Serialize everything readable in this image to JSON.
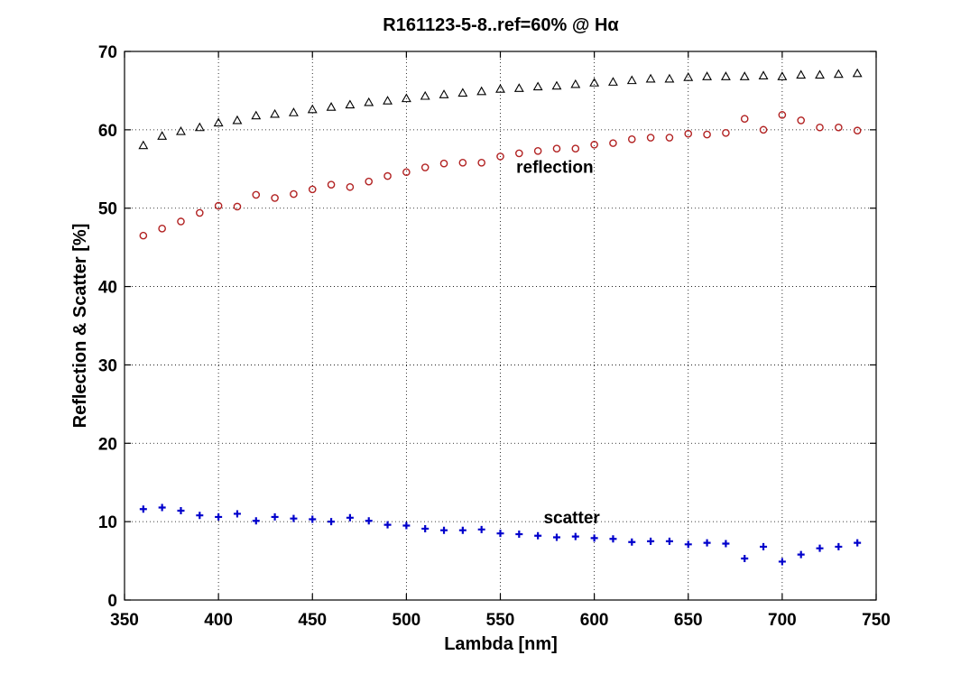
{
  "chart_data": {
    "type": "scatter",
    "title": "R161123-5-8..ref=60% @ Hα",
    "xlabel": "Lambda [nm]",
    "ylabel": "Reflection & Scatter [%]",
    "xlim": [
      350,
      750
    ],
    "ylim": [
      0,
      70
    ],
    "xticks": [
      350,
      400,
      450,
      500,
      550,
      600,
      650,
      700,
      750
    ],
    "yticks": [
      0,
      10,
      20,
      30,
      40,
      50,
      60,
      70
    ],
    "grid": true,
    "x": [
      360,
      370,
      380,
      390,
      400,
      410,
      420,
      430,
      440,
      450,
      460,
      470,
      480,
      490,
      500,
      510,
      520,
      530,
      540,
      550,
      560,
      570,
      580,
      590,
      600,
      610,
      620,
      630,
      640,
      650,
      660,
      670,
      680,
      690,
      700,
      710,
      720,
      730,
      740
    ],
    "series": [
      {
        "marker": "triangle",
        "color": "#000000",
        "values": [
          58.0,
          59.2,
          59.8,
          60.3,
          60.9,
          61.2,
          61.8,
          62.0,
          62.2,
          62.6,
          62.9,
          63.2,
          63.5,
          63.7,
          64.0,
          64.3,
          64.5,
          64.7,
          64.9,
          65.2,
          65.3,
          65.5,
          65.6,
          65.8,
          66.0,
          66.1,
          66.3,
          66.5,
          66.5,
          66.7,
          66.8,
          66.8,
          66.8,
          66.9,
          66.8,
          67.0,
          67.0,
          67.1,
          67.2
        ]
      },
      {
        "marker": "circle",
        "color": "#b22222",
        "values": [
          46.5,
          47.4,
          48.3,
          49.4,
          50.3,
          50.2,
          51.7,
          51.3,
          51.8,
          52.4,
          53.0,
          52.7,
          53.4,
          54.1,
          54.6,
          55.2,
          55.7,
          55.8,
          55.8,
          56.6,
          57.0,
          57.3,
          57.6,
          57.6,
          58.1,
          58.3,
          58.8,
          59.0,
          59.0,
          59.5,
          59.4,
          59.6,
          61.4,
          60.0,
          61.9,
          61.2,
          60.3,
          60.3,
          59.9
        ]
      },
      {
        "marker": "plus",
        "color": "#0000cc",
        "values": [
          11.6,
          11.8,
          11.4,
          10.8,
          10.6,
          11.0,
          10.1,
          10.6,
          10.4,
          10.3,
          10.0,
          10.5,
          10.1,
          9.6,
          9.5,
          9.1,
          8.9,
          8.9,
          9.0,
          8.5,
          8.4,
          8.2,
          8.0,
          8.1,
          7.9,
          7.8,
          7.4,
          7.5,
          7.5,
          7.1,
          7.3,
          7.2,
          5.3,
          6.8,
          4.9,
          5.8,
          6.6,
          6.8,
          7.3
        ]
      }
    ],
    "annotations": [
      {
        "text": "reflection",
        "x": 579,
        "y": 54.5
      },
      {
        "text": "scatter",
        "x": 588,
        "y": 9.8
      }
    ]
  }
}
